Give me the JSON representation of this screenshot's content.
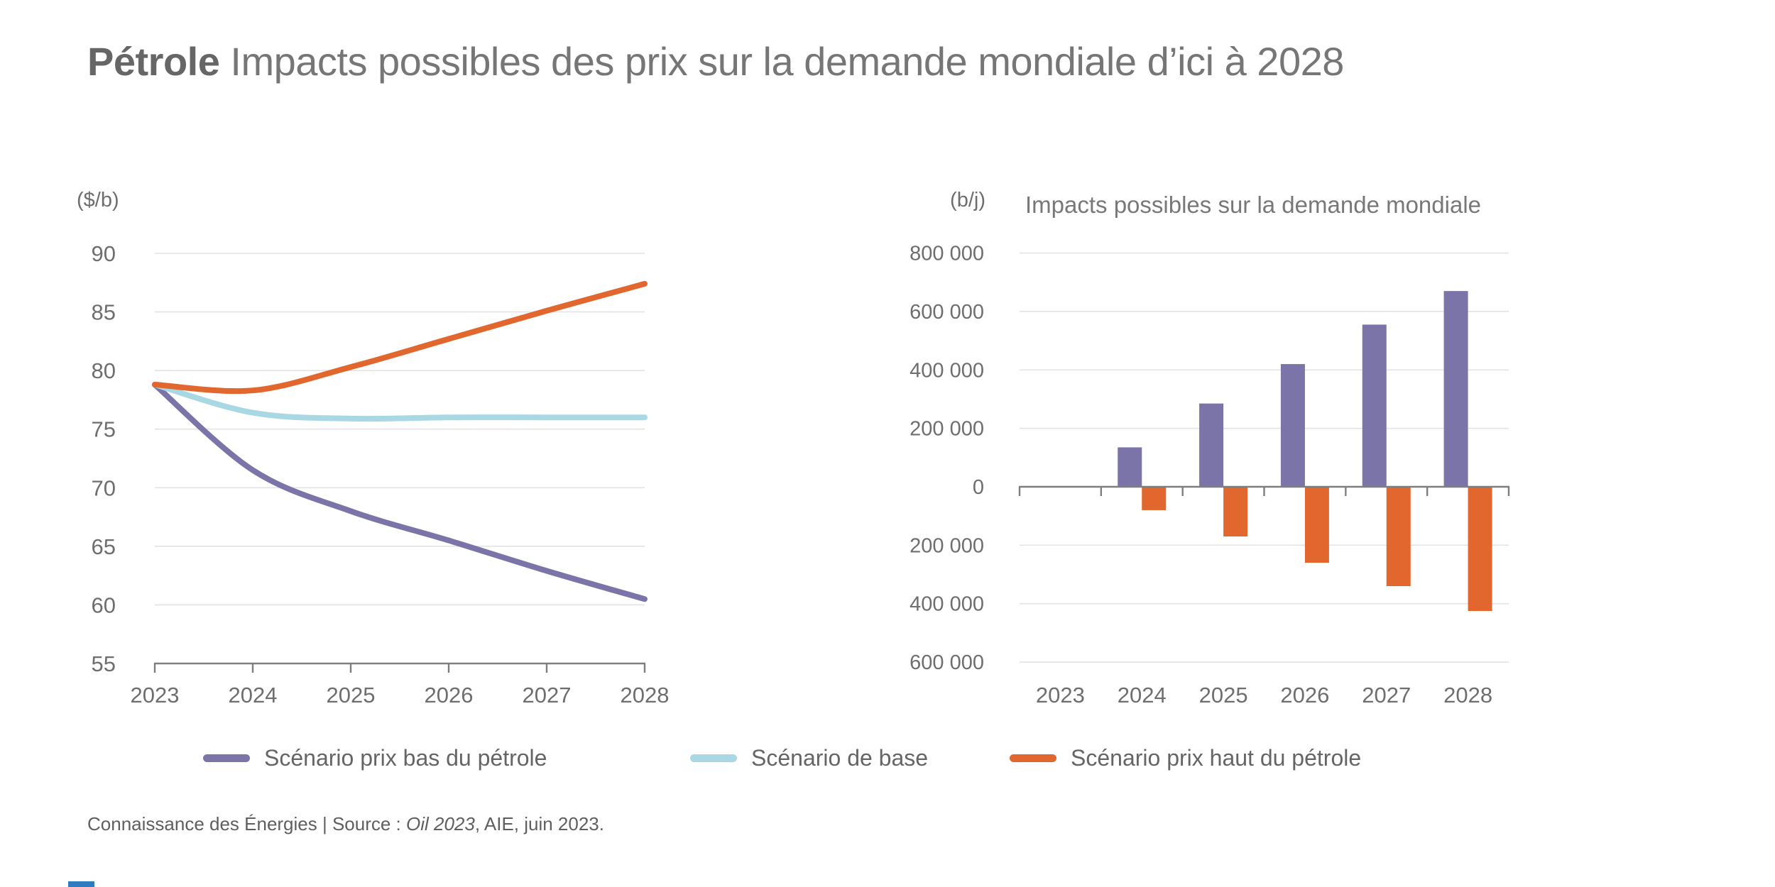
{
  "page": {
    "title_bold": "Pétrole",
    "title_rest": " Impacts possibles des prix sur la demande mondiale d’ici à 2028",
    "footer_prefix": "Connaissance des Énergies | Source : ",
    "footer_source_italic": "Oil 2023",
    "footer_suffix": ", AIE, juin 2023."
  },
  "colors": {
    "low_scenario": "#7b74a9",
    "base_scenario": "#a8d8e4",
    "high_scenario": "#e2672f",
    "gridline": "#e3e3e3",
    "axis": "#7e7e7e",
    "tick_text": "#6e6e6e",
    "logo_blue": "#2e7bbf"
  },
  "legend": {
    "items": [
      {
        "label": "Scénario prix bas du pétrole",
        "color": "#7b74a9"
      },
      {
        "label": "Scénario de base",
        "color": "#a8d8e4"
      },
      {
        "label": "Scénario prix haut du pétrole",
        "color": "#e2672f"
      }
    ]
  },
  "chart_data": [
    {
      "type": "line",
      "title": "",
      "unit_label": "($/b)",
      "x": [
        "2023",
        "2024",
        "2025",
        "2026",
        "2027",
        "2028"
      ],
      "series": [
        {
          "name": "Scénario prix bas du pétrole",
          "color": "#7b74a9",
          "values": [
            78.8,
            71.5,
            68.0,
            65.5,
            62.9,
            60.5
          ]
        },
        {
          "name": "Scénario de base",
          "color": "#a8d8e4",
          "values": [
            78.8,
            76.4,
            75.9,
            76.0,
            76.0,
            76.0
          ]
        },
        {
          "name": "Scénario prix haut du pétrole",
          "color": "#e2672f",
          "values": [
            78.8,
            78.3,
            80.3,
            82.7,
            85.1,
            87.4
          ]
        }
      ],
      "ylim": [
        55,
        90
      ],
      "yticks": [
        {
          "value": 90,
          "label": "90"
        },
        {
          "value": 85,
          "label": "85"
        },
        {
          "value": 80,
          "label": "80"
        },
        {
          "value": 75,
          "label": "75"
        },
        {
          "value": 70,
          "label": "70"
        },
        {
          "value": 65,
          "label": "65"
        },
        {
          "value": 60,
          "label": "60"
        },
        {
          "value": 55,
          "label": "55"
        }
      ],
      "grid": true,
      "legend_position": "bottom"
    },
    {
      "type": "bar",
      "title": "Impacts possibles sur la demande mondiale",
      "unit_label": "(b/j)",
      "categories": [
        "2023",
        "2024",
        "2025",
        "2026",
        "2027",
        "2028"
      ],
      "series": [
        {
          "name": "Scénario prix bas du pétrole",
          "color": "#7b74a9",
          "values": [
            0,
            135000,
            285000,
            420000,
            555000,
            670000
          ]
        },
        {
          "name": "Scénario prix haut du pétrole",
          "color": "#e2672f",
          "values": [
            0,
            -80000,
            -170000,
            -260000,
            -340000,
            -425000
          ]
        }
      ],
      "ylim": [
        -600000,
        800000
      ],
      "yticks": [
        {
          "value": 800000,
          "label": "+ 800 000"
        },
        {
          "value": 600000,
          "label": "+ 600 000"
        },
        {
          "value": 400000,
          "label": "+ 400 000"
        },
        {
          "value": 200000,
          "label": "+ 200 000"
        },
        {
          "value": 0,
          "label": "0"
        },
        {
          "value": -200000,
          "label": "- 200 000"
        },
        {
          "value": -400000,
          "label": "- 400 000"
        },
        {
          "value": -600000,
          "label": "- 600 000"
        }
      ],
      "grid": true,
      "legend_position": "bottom"
    }
  ]
}
